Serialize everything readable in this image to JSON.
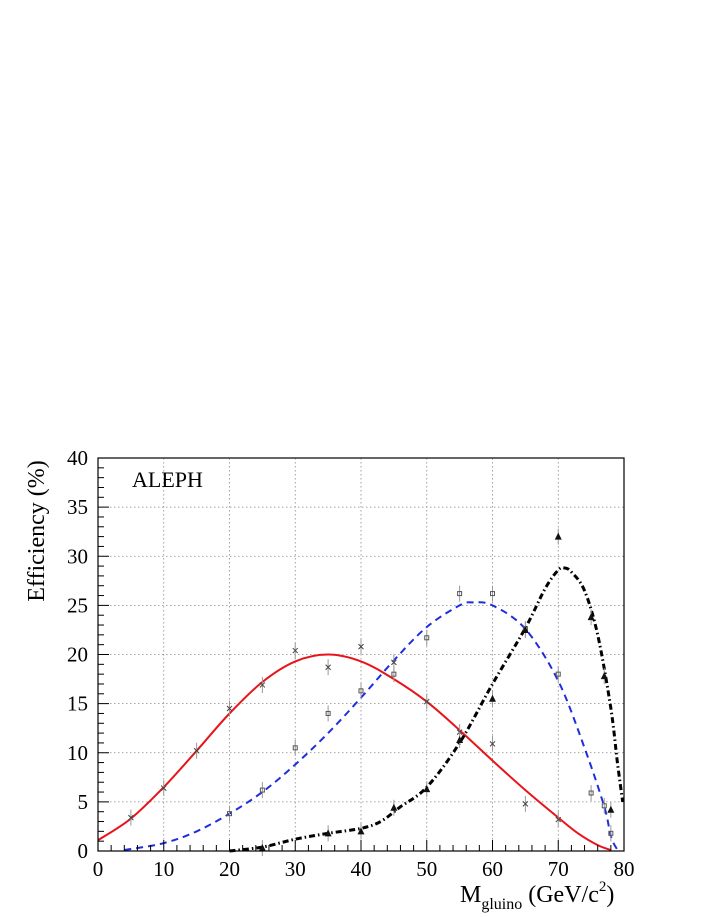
{
  "chart_data": {
    "type": "scatter",
    "title": "",
    "annotation": "ALEPH",
    "xlabel": "M",
    "xlabel_sub": "gluino",
    "xlabel_unit_pre": " (GeV/c",
    "xlabel_unit_sup": "2",
    "xlabel_unit_post": ")",
    "ylabel": "Efficiency (%)",
    "xlim": [
      0,
      80
    ],
    "ylim": [
      0,
      40
    ],
    "xticks": [
      0,
      10,
      20,
      30,
      40,
      50,
      60,
      70,
      80
    ],
    "yticks": [
      0,
      5,
      10,
      15,
      20,
      25,
      30,
      35,
      40
    ],
    "grid": true,
    "series": [
      {
        "style": "solid",
        "color": "#e8141a",
        "curve": [
          [
            0,
            1.1
          ],
          [
            5,
            3.3
          ],
          [
            10,
            6.5
          ],
          [
            15,
            10.2
          ],
          [
            20,
            14.0
          ],
          [
            25,
            17.2
          ],
          [
            30,
            19.3
          ],
          [
            35,
            20.0
          ],
          [
            40,
            19.3
          ],
          [
            45,
            17.5
          ],
          [
            50,
            15.2
          ],
          [
            55,
            12.3
          ],
          [
            60,
            9.2
          ],
          [
            65,
            6.2
          ],
          [
            70,
            3.4
          ],
          [
            73,
            1.8
          ],
          [
            76,
            0.6
          ],
          [
            78,
            0.1
          ]
        ],
        "points": [
          [
            5,
            3.4
          ],
          [
            10,
            6.4
          ],
          [
            15,
            10.2
          ],
          [
            20,
            14.5
          ],
          [
            25,
            16.9
          ],
          [
            30,
            20.4
          ],
          [
            35,
            18.7
          ],
          [
            40,
            20.8
          ],
          [
            45,
            19.2
          ],
          [
            50,
            15.2
          ],
          [
            55,
            12.1
          ],
          [
            60,
            10.9
          ],
          [
            65,
            4.8
          ],
          [
            70,
            3.2
          ]
        ]
      },
      {
        "style": "dashed",
        "color": "#1f2edc",
        "curve": [
          [
            4,
            0.1
          ],
          [
            10,
            0.8
          ],
          [
            15,
            2.0
          ],
          [
            20,
            3.8
          ],
          [
            25,
            6.0
          ],
          [
            30,
            8.8
          ],
          [
            35,
            12.0
          ],
          [
            40,
            15.6
          ],
          [
            45,
            19.4
          ],
          [
            50,
            22.8
          ],
          [
            55,
            25.0
          ],
          [
            57,
            25.3
          ],
          [
            60,
            25.0
          ],
          [
            65,
            22.6
          ],
          [
            70,
            17.3
          ],
          [
            74,
            10.5
          ],
          [
            77,
            4.5
          ],
          [
            78,
            1.5
          ],
          [
            79,
            0.1
          ]
        ],
        "points": [
          [
            20,
            3.8
          ],
          [
            25,
            6.2
          ],
          [
            30,
            10.5
          ],
          [
            35,
            14.0
          ],
          [
            40,
            16.3
          ],
          [
            45,
            18.0
          ],
          [
            50,
            21.7
          ],
          [
            55,
            26.2
          ],
          [
            60,
            26.2
          ],
          [
            65,
            22.6
          ],
          [
            70,
            18.0
          ],
          [
            75,
            5.9
          ],
          [
            77,
            4.6
          ],
          [
            78,
            1.8
          ]
        ]
      },
      {
        "style": "dash-dot",
        "color": "#000000",
        "curve": [
          [
            20,
            0.0
          ],
          [
            25,
            0.4
          ],
          [
            30,
            1.2
          ],
          [
            35,
            1.8
          ],
          [
            40,
            2.3
          ],
          [
            43,
            3.0
          ],
          [
            46,
            4.5
          ],
          [
            50,
            6.5
          ],
          [
            55,
            11.0
          ],
          [
            60,
            17.0
          ],
          [
            65,
            22.7
          ],
          [
            68,
            26.7
          ],
          [
            70,
            28.6
          ],
          [
            71,
            28.8
          ],
          [
            72,
            28.4
          ],
          [
            74,
            26.5
          ],
          [
            76,
            22.0
          ],
          [
            78,
            14.5
          ],
          [
            79,
            9.0
          ],
          [
            79.8,
            5.0
          ]
        ],
        "points": [
          [
            25,
            0.3
          ],
          [
            35,
            1.8
          ],
          [
            40,
            2.0
          ],
          [
            45,
            4.4
          ],
          [
            50,
            6.3
          ],
          [
            55,
            11.3
          ],
          [
            60,
            15.5
          ],
          [
            65,
            22.5
          ],
          [
            70,
            32.0
          ],
          [
            75,
            23.8
          ],
          [
            77,
            17.8
          ],
          [
            78,
            4.2
          ]
        ]
      }
    ]
  }
}
